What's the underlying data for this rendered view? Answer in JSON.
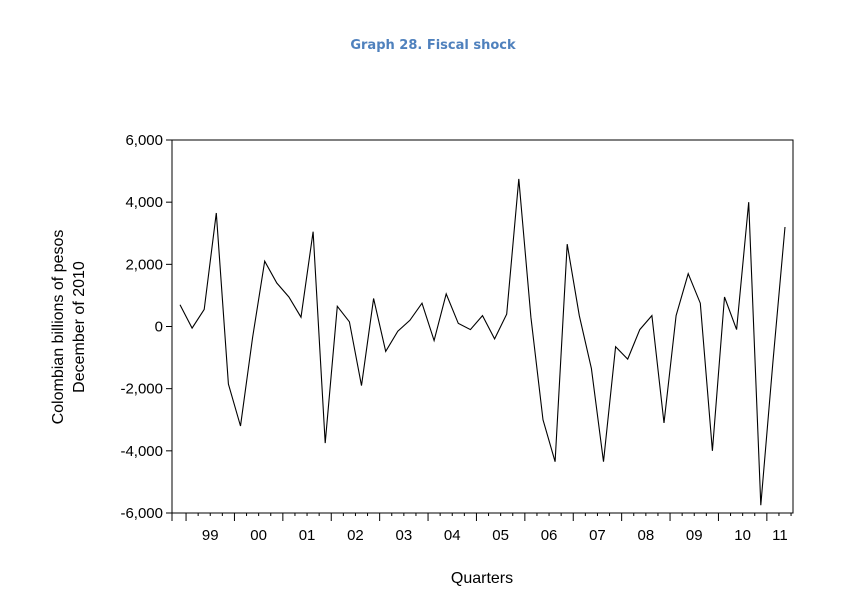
{
  "chart_data": {
    "type": "line",
    "title": "Graph 28. Fiscal shock",
    "xlabel": "Quarters",
    "ylabel": [
      "Colombian billions of pesos",
      "December of 2010"
    ],
    "ylim": [
      -6000,
      6000
    ],
    "y_ticks": [
      -6000,
      -4000,
      -2000,
      0,
      2000,
      4000,
      6000
    ],
    "y_tick_labels": [
      "-6,000",
      "-4,000",
      "-2,000",
      "0",
      "2,000",
      "4,000",
      "6,000"
    ],
    "year_labels": [
      "99",
      "00",
      "01",
      "02",
      "03",
      "04",
      "05",
      "06",
      "07",
      "08",
      "09",
      "10",
      "11"
    ],
    "grid": false,
    "series": [
      {
        "x": [
          "1998Q4",
          "1999Q1",
          "1999Q2",
          "1999Q3",
          "1999Q4",
          "2000Q1",
          "2000Q2",
          "2000Q3",
          "2000Q4",
          "2001Q1",
          "2001Q2",
          "2001Q3",
          "2001Q4",
          "2002Q1",
          "2002Q2",
          "2002Q3",
          "2002Q4",
          "2003Q1",
          "2003Q2",
          "2003Q3",
          "2003Q4",
          "2004Q1",
          "2004Q2",
          "2004Q3",
          "2004Q4",
          "2005Q1",
          "2005Q2",
          "2005Q3",
          "2005Q4",
          "2006Q1",
          "2006Q2",
          "2006Q3",
          "2006Q4",
          "2007Q1",
          "2007Q2",
          "2007Q3",
          "2007Q4",
          "2008Q1",
          "2008Q2",
          "2008Q3",
          "2008Q4",
          "2009Q1",
          "2009Q2",
          "2009Q3",
          "2009Q4",
          "2010Q1",
          "2010Q2",
          "2010Q3",
          "2010Q4",
          "2011Q1",
          "2011Q2"
        ],
        "values": [
          700,
          -50,
          550,
          3650,
          -1850,
          -3200,
          -350,
          2100,
          1400,
          950,
          300,
          3050,
          -3750,
          650,
          150,
          -1900,
          900,
          -800,
          -150,
          200,
          750,
          -450,
          1050,
          100,
          -100,
          350,
          -400,
          400,
          4750,
          300,
          -3000,
          -4350,
          2650,
          350,
          -1350,
          -4350,
          -650,
          -1050,
          -100,
          350,
          -3100,
          350,
          1700,
          750,
          -4000,
          950,
          -100,
          4000,
          -5750,
          -1150,
          3200
        ]
      }
    ]
  }
}
